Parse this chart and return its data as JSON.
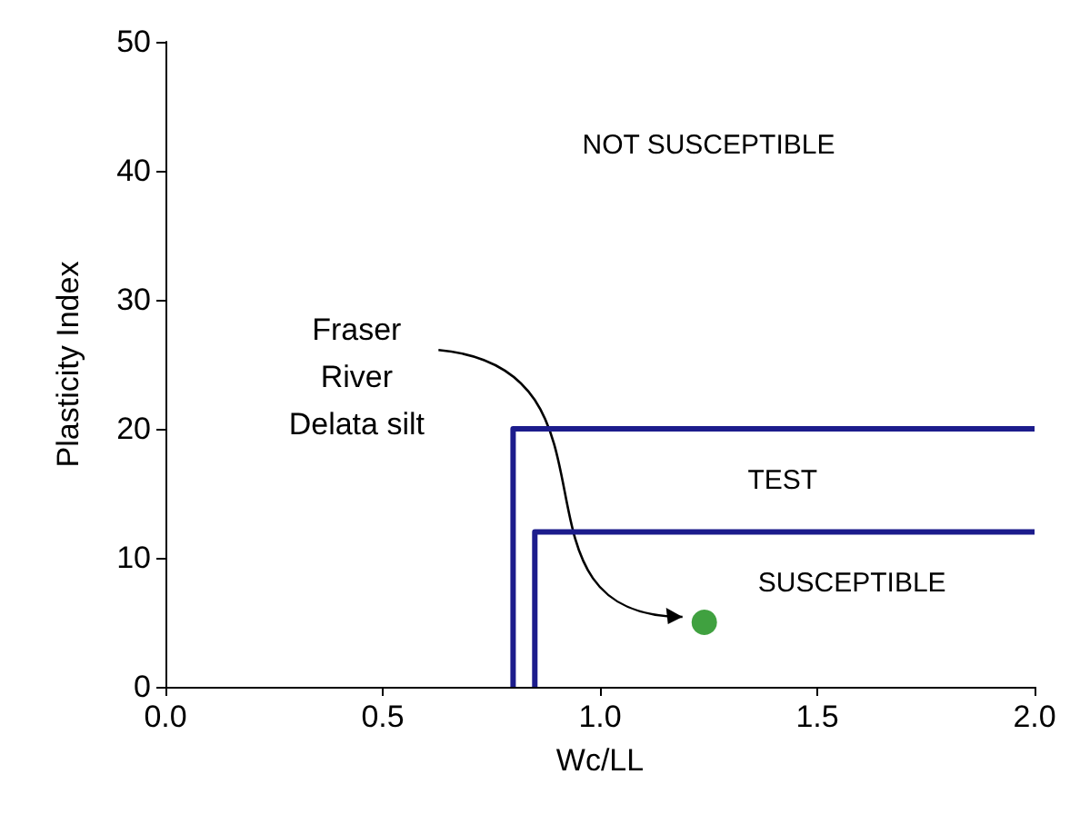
{
  "chart_data": {
    "type": "scatter",
    "xlabel": "Wc/LL",
    "ylabel": "Plasticity Index",
    "xlim": [
      0,
      2
    ],
    "xticks": [
      {
        "value": 0,
        "label": "0.0"
      },
      {
        "value": 0.5,
        "label": "0.5"
      },
      {
        "value": 1,
        "label": "1.0"
      },
      {
        "value": 1.5,
        "label": "1.5"
      },
      {
        "value": 2,
        "label": "2.0"
      }
    ],
    "ylim": [
      0,
      50
    ],
    "yticks": [
      0,
      10,
      20,
      30,
      40,
      50
    ],
    "series": [
      {
        "type": "line",
        "color": "#1c1c8c",
        "marker": "none",
        "x": [
          0.8,
          0.8,
          2.0
        ],
        "values": [
          0,
          20,
          20
        ]
      },
      {
        "type": "line",
        "color": "#1c1c8c",
        "marker": "none",
        "x": [
          0.85,
          0.85,
          2.0
        ],
        "values": [
          0,
          12,
          12
        ]
      },
      {
        "color": "#108a10",
        "marker": "circle",
        "x": [
          1.24
        ],
        "values": [
          5
        ]
      }
    ],
    "annotations": [
      "NOT SUSCEPTIBLE",
      "TEST",
      "SUSCEPTIBLE",
      "Fraser\nRiver\nDelata silt"
    ],
    "grid": false,
    "line_style": "solid"
  }
}
